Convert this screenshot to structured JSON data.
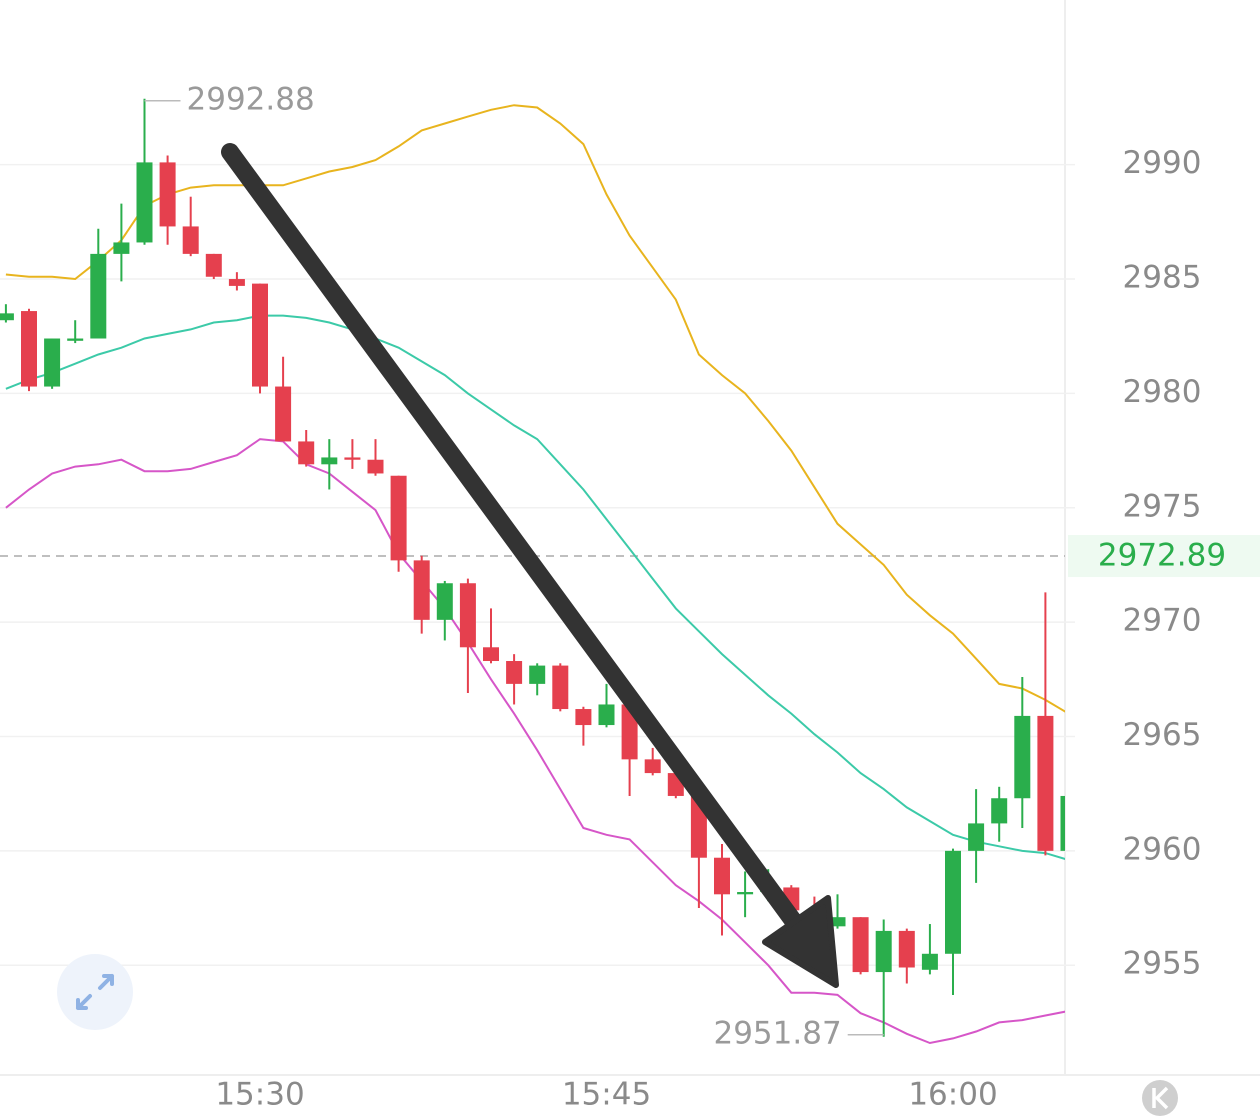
{
  "chart_data": {
    "type": "candlestick",
    "categories": [
      null,
      null,
      null,
      null,
      null,
      null,
      null,
      null,
      null,
      null,
      null,
      "15:30",
      null,
      null,
      null,
      null,
      null,
      null,
      null,
      null,
      null,
      null,
      null,
      null,
      null,
      null,
      "15:45",
      null,
      null,
      null,
      null,
      null,
      null,
      null,
      null,
      null,
      null,
      null,
      null,
      null,
      null,
      "16:00",
      null,
      null,
      null,
      null,
      null
    ],
    "open": [
      2983.2,
      2983.6,
      2980.3,
      2982.3,
      2982.4,
      2986.1,
      2986.6,
      2990.1,
      2987.3,
      2986.1,
      2985.0,
      2984.8,
      2980.3,
      2977.9,
      2976.9,
      2977.2,
      2977.1,
      2976.4,
      2972.7,
      2970.1,
      2971.7,
      2968.9,
      2968.3,
      2967.3,
      2968.1,
      2966.2,
      2965.5,
      2966.4,
      2964.0,
      2963.4,
      2962.4,
      2959.7,
      2958.1,
      2958.2,
      2958.4,
      2957.4,
      2956.7,
      2957.1,
      2954.7,
      2956.5,
      2954.8,
      2955.5,
      2960.0,
      2961.2,
      2962.3,
      2965.9,
      2960.0
    ],
    "high": [
      2983.9,
      2983.7,
      2982.4,
      2983.2,
      2987.2,
      2988.3,
      2992.88,
      2990.4,
      2988.6,
      2986.1,
      2985.3,
      2984.8,
      2981.6,
      2978.4,
      2978.0,
      2978.0,
      2978.0,
      2976.4,
      2972.9,
      2971.8,
      2971.9,
      2970.6,
      2968.6,
      2968.2,
      2968.2,
      2966.3,
      2967.3,
      2966.5,
      2964.5,
      2963.5,
      2962.5,
      2960.3,
      2959.1,
      2959.2,
      2958.5,
      2958.0,
      2958.1,
      2957.1,
      2957.0,
      2956.6,
      2956.8,
      2960.1,
      2962.7,
      2962.8,
      2967.6,
      2971.3,
      2962.4
    ],
    "low": [
      2983.1,
      2980.1,
      2980.2,
      2982.2,
      2982.4,
      2984.9,
      2986.5,
      2986.5,
      2986.0,
      2985.0,
      2984.5,
      2980.0,
      2977.9,
      2976.8,
      2975.8,
      2976.7,
      2976.4,
      2972.2,
      2969.5,
      2969.2,
      2966.9,
      2968.2,
      2966.4,
      2966.8,
      2966.1,
      2964.6,
      2965.4,
      2962.4,
      2963.3,
      2962.3,
      2957.5,
      2956.3,
      2957.1,
      2957.8,
      2957.3,
      2956.9,
      2956.6,
      2954.6,
      2951.87,
      2954.2,
      2954.6,
      2953.7,
      2958.6,
      2960.4,
      2961.0,
      2959.8,
      2960.0
    ],
    "close": [
      2983.5,
      2980.3,
      2982.4,
      2982.4,
      2986.1,
      2986.6,
      2990.1,
      2987.3,
      2986.1,
      2985.1,
      2984.7,
      2980.3,
      2977.9,
      2976.9,
      2977.2,
      2977.1,
      2976.5,
      2972.7,
      2970.1,
      2971.7,
      2968.9,
      2968.3,
      2967.3,
      2968.1,
      2966.2,
      2965.5,
      2966.4,
      2964.0,
      2963.4,
      2962.4,
      2959.7,
      2958.1,
      2958.2,
      2958.4,
      2957.4,
      2957.0,
      2957.1,
      2954.7,
      2956.5,
      2954.9,
      2955.5,
      2960.0,
      2961.2,
      2962.3,
      2965.9,
      2960.0,
      2962.4
    ],
    "up_color": "#2aae4c",
    "down_color": "#e5404e",
    "bands": [
      {
        "color": "#e8b41e",
        "values": [
          2985.2,
          2985.1,
          2985.1,
          2985.0,
          2985.8,
          2986.7,
          2988.2,
          2988.7,
          2989.0,
          2989.1,
          2989.1,
          2989.1,
          2989.1,
          2989.4,
          2989.7,
          2989.9,
          2990.2,
          2990.8,
          2991.5,
          2991.8,
          2992.1,
          2992.4,
          2992.6,
          2992.5,
          2991.8,
          2990.9,
          2988.7,
          2986.9,
          2985.5,
          2984.1,
          2981.7,
          2980.8,
          2980.0,
          2978.8,
          2977.5,
          2975.9,
          2974.3,
          2973.4,
          2972.5,
          2971.2,
          2970.3,
          2969.5,
          2968.4,
          2967.3,
          2967.1,
          2966.6,
          2966.0
        ]
      },
      {
        "color": "#3ccaa8",
        "values": [
          2980.2,
          2980.6,
          2980.9,
          2981.3,
          2981.7,
          2982.0,
          2982.4,
          2982.6,
          2982.8,
          2983.1,
          2983.2,
          2983.4,
          2983.4,
          2983.3,
          2983.1,
          2982.8,
          2982.4,
          2982.0,
          2981.4,
          2980.8,
          2980.0,
          2979.3,
          2978.6,
          2978.0,
          2976.9,
          2975.8,
          2974.5,
          2973.2,
          2971.9,
          2970.6,
          2969.6,
          2968.6,
          2967.7,
          2966.8,
          2966.0,
          2965.1,
          2964.3,
          2963.4,
          2962.7,
          2961.9,
          2961.3,
          2960.7,
          2960.4,
          2960.2,
          2960.0,
          2959.9,
          2959.6
        ]
      },
      {
        "color": "#d656c8",
        "values": [
          2975.0,
          2975.8,
          2976.5,
          2976.8,
          2976.9,
          2977.1,
          2976.6,
          2976.6,
          2976.7,
          2977.0,
          2977.3,
          2978.0,
          2977.9,
          2976.9,
          2976.5,
          2975.7,
          2974.9,
          2973.0,
          2971.8,
          2970.6,
          2969.1,
          2967.5,
          2966.0,
          2964.4,
          2962.7,
          2961.0,
          2960.7,
          2960.5,
          2959.5,
          2958.5,
          2957.8,
          2957.0,
          2956.0,
          2955.0,
          2953.8,
          2953.8,
          2953.7,
          2952.9,
          2952.5,
          2952.0,
          2951.6,
          2951.8,
          2952.1,
          2952.5,
          2952.6,
          2952.8,
          2953.0
        ]
      }
    ],
    "last_price": 2972.89,
    "ylim": [
      2950.2,
      2997.2
    ],
    "yticks": [
      2955,
      2960,
      2965,
      2970,
      2975,
      2980,
      2985,
      2990
    ],
    "grid": true
  }
}
